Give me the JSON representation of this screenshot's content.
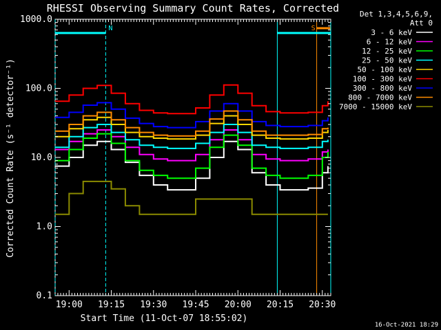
{
  "chart_data": {
    "type": "line",
    "title": "RHESSI Observing Summary Count Rates, Corrected",
    "xlabel": "Start Time (11-Oct-07 18:55:02)",
    "ylabel": "Corrected Count Rate (s⁻¹ detector⁻¹)",
    "ylog": true,
    "ylim": [
      0.1,
      1000
    ],
    "xlim": [
      "18:55:02",
      "20:33:00"
    ],
    "x_ticks": [
      "19:00",
      "19:15",
      "19:30",
      "19:45",
      "20:00",
      "20:15",
      "20:30"
    ],
    "y_ticks": [
      "1000.0",
      "100.0",
      "10.0",
      "1.0",
      "0.1"
    ],
    "legend_header": [
      "Det 1,3,4,5,6,9,",
      "Att 0"
    ],
    "legend_position": "right",
    "footer_date": "16-Oct-2021 18:29",
    "x": [
      "18:55",
      "19:00",
      "19:05",
      "19:10",
      "19:15",
      "19:20",
      "19:25",
      "19:30",
      "19:35",
      "19:40",
      "19:45",
      "19:50",
      "19:55",
      "20:00",
      "20:05",
      "20:10",
      "20:15",
      "20:20",
      "20:25",
      "20:30",
      "20:32"
    ],
    "series": [
      {
        "name": "3 - 6 keV",
        "color": "#ffffff",
        "values": [
          7.5,
          10,
          15,
          17,
          13,
          8.5,
          5.5,
          4,
          3.4,
          3.4,
          5,
          10,
          17,
          13,
          6,
          4,
          3.4,
          3.4,
          3.6,
          6,
          7.5
        ]
      },
      {
        "name": "6 - 12 keV",
        "color": "#ff00ff",
        "values": [
          13,
          17,
          22,
          25,
          20,
          14,
          11,
          9.5,
          9,
          9,
          11,
          18,
          25,
          18,
          11,
          9.5,
          9,
          9,
          9.5,
          12,
          13
        ]
      },
      {
        "name": "12 - 25 keV",
        "color": "#00ff00",
        "values": [
          9,
          13,
          19,
          22,
          16,
          9,
          6.5,
          5.5,
          5,
          5,
          7,
          14,
          21,
          15,
          7,
          5.5,
          5,
          5,
          5.5,
          10,
          12
        ]
      },
      {
        "name": "25 - 50 keV",
        "color": "#00ffff",
        "values": [
          14,
          20,
          27,
          30,
          23,
          18,
          15,
          14,
          13.5,
          13.5,
          16,
          23,
          30,
          23,
          15,
          14,
          13.5,
          13.5,
          14,
          17,
          18
        ]
      },
      {
        "name": "50 - 100 keV",
        "color": "#ffd700",
        "values": [
          20,
          26,
          35,
          38,
          30,
          23,
          20,
          19,
          18.5,
          18.5,
          21,
          31,
          40,
          30,
          21,
          19,
          18.5,
          18.5,
          19,
          23,
          25
        ]
      },
      {
        "name": "100 - 300 keV",
        "color": "#ff0000",
        "values": [
          65,
          80,
          100,
          110,
          85,
          60,
          48,
          44,
          43,
          43,
          52,
          80,
          112,
          85,
          56,
          46,
          44,
          44,
          45,
          56,
          65
        ]
      },
      {
        "name": "300 - 800 keV",
        "color": "#0000ff",
        "values": [
          38,
          45,
          57,
          62,
          50,
          37,
          31,
          28,
          27,
          27,
          33,
          47,
          60,
          47,
          33,
          29,
          28,
          28,
          29,
          34,
          38
        ]
      },
      {
        "name": "800 - 7000 keV",
        "color": "#ff8c00",
        "values": [
          24,
          30,
          40,
          45,
          35,
          27,
          23,
          21,
          20.5,
          20.5,
          24,
          36,
          47,
          35,
          24,
          21,
          21,
          21,
          21.5,
          26,
          27
        ]
      },
      {
        "name": "7000 - 15000 keV",
        "color": "#8b8b00",
        "values": [
          1.5,
          3,
          4.5,
          4.5,
          3.5,
          2,
          1.5,
          1.5,
          1.5,
          1.5,
          2.5,
          2.5,
          2.5,
          2.5,
          1.5,
          1.5,
          1.5,
          1.5,
          1.5,
          1.5,
          1.5
        ]
      }
    ],
    "annotations": [
      {
        "label": "N",
        "color": "#00ffff",
        "range": [
          "18:55:02",
          "19:13:00"
        ]
      },
      {
        "label": "S",
        "color": "#ff8c00",
        "range": [
          "20:28:00",
          "20:33:00"
        ]
      },
      {
        "label": "",
        "color": "#00ffff",
        "range": [
          "20:14:00",
          "20:33:00"
        ]
      }
    ]
  }
}
